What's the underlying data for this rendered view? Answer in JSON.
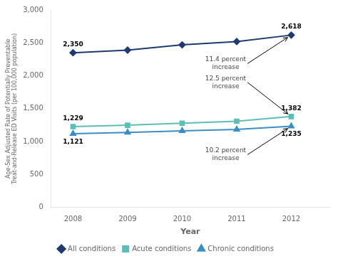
{
  "chart_data": {
    "type": "line",
    "xlabel": "Year",
    "ylabel": "Age-Sex Adjusted Rate of Potentially Preventable\nTreat-and-Release ED Visits (per 100,000 population)",
    "x": [
      2008,
      2009,
      2010,
      2011,
      2012
    ],
    "series": [
      {
        "name": "All conditions",
        "color": "#1e3a6e",
        "marker": "diamond",
        "values": [
          2350,
          2390,
          2470,
          2520,
          2618
        ],
        "value_labels": [
          "2,350",
          null,
          null,
          null,
          "2,618"
        ]
      },
      {
        "name": "Acute conditions",
        "color": "#5bbfb5",
        "marker": "square",
        "values": [
          1229,
          1250,
          1280,
          1310,
          1382
        ],
        "value_labels": [
          "1,229",
          null,
          null,
          null,
          "1,382"
        ]
      },
      {
        "name": "Chronic conditions",
        "color": "#3b8ec4",
        "marker": "triangle",
        "values": [
          1121,
          1140,
          1165,
          1185,
          1235
        ],
        "value_labels": [
          "1,121",
          null,
          null,
          null,
          "1,235"
        ]
      }
    ],
    "xlim": [
      2007.6,
      2012.7
    ],
    "xticks": [
      2008,
      2009,
      2010,
      2011,
      2012
    ],
    "ylim": [
      0,
      3000
    ],
    "yticks": [
      0,
      500,
      {
        "value": 1000,
        "label": "1,000"
      },
      {
        "value": 1500,
        "label": "1,500"
      },
      {
        "value": 2000,
        "label": "2,000"
      },
      {
        "value": 2500,
        "label": "2,500"
      },
      {
        "value": 3000,
        "label": "3,000"
      }
    ],
    "grid": false,
    "legend": "bottom",
    "data_labels": true,
    "annotations": [
      {
        "text": "11.4 percent\nincrease",
        "x": 2012,
        "y": 2618
      },
      {
        "text": "12.5 percent\nincrease",
        "x": 2012,
        "y": 1382
      },
      {
        "text": "10.2 percent\nincrease",
        "x": 2012,
        "y": 1235
      }
    ]
  }
}
